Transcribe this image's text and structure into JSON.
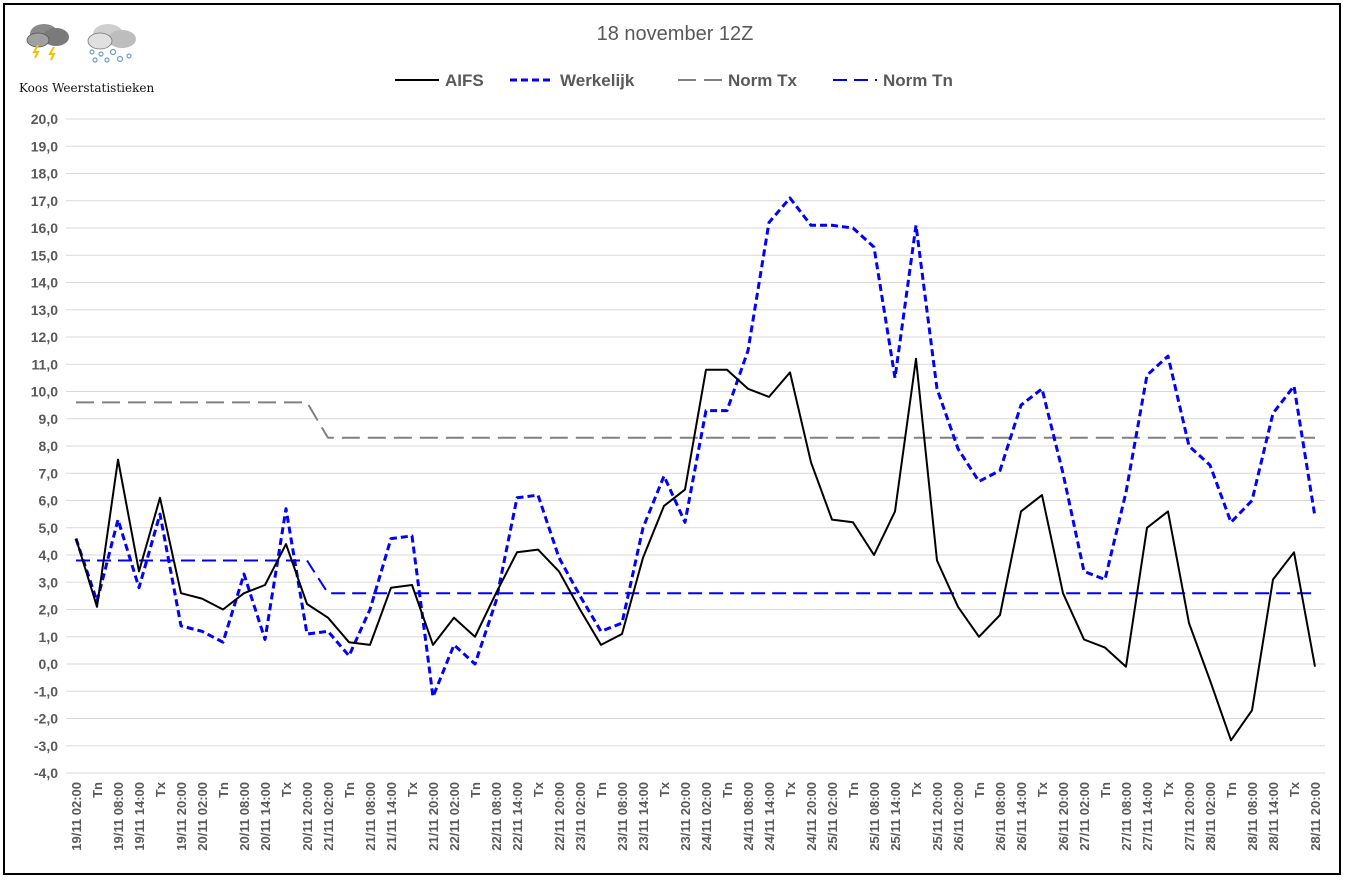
{
  "logo": {
    "text": "Koos Weerstatistieken",
    "icons": [
      "thunderstorm-cloud-icon",
      "snow-cloud-icon"
    ]
  },
  "chart_data": {
    "type": "line",
    "title": "18 november 12Z",
    "xlabel": "",
    "ylabel": "",
    "ylim": [
      -4,
      20
    ],
    "yticks": [
      "20,0",
      "19,0",
      "18,0",
      "17,0",
      "16,0",
      "15,0",
      "14,0",
      "13,0",
      "12,0",
      "11,0",
      "10,0",
      "9,0",
      "8,0",
      "7,0",
      "6,0",
      "5,0",
      "4,0",
      "3,0",
      "2,0",
      "1,0",
      "0,0",
      "-1,0",
      "-2,0",
      "-3,0",
      "-4,0"
    ],
    "grid": true,
    "legend_position": "top",
    "categories": [
      "19/11 02:00",
      "Tn",
      "19/11 08:00",
      "19/11 14:00",
      "Tx",
      "19/11 20:00",
      "20/11 02:00",
      "Tn",
      "20/11 08:00",
      "20/11 14:00",
      "Tx",
      "20/11 20:00",
      "21/11 02:00",
      "Tn",
      "21/11 08:00",
      "21/11 14:00",
      "Tx",
      "21/11 20:00",
      "22/11 02:00",
      "Tn",
      "22/11 08:00",
      "22/11 14:00",
      "Tx",
      "22/11 20:00",
      "23/11 02:00",
      "Tn",
      "23/11 08:00",
      "23/11 14:00",
      "Tx",
      "23/11 20:00",
      "24/11 02:00",
      "Tn",
      "24/11 08:00",
      "24/11 14:00",
      "Tx",
      "24/11 20:00",
      "25/11 02:00",
      "Tn",
      "25/11 08:00",
      "25/11 14:00",
      "Tx",
      "25/11 20:00",
      "26/11 02:00",
      "Tn",
      "26/11 08:00",
      "26/11 14:00",
      "Tx",
      "26/11 20:00",
      "27/11 02:00",
      "Tn",
      "27/11 08:00",
      "27/11 14:00",
      "Tx",
      "27/11 20:00",
      "28/11 02:00",
      "Tn",
      "28/11 08:00",
      "28/11 14:00",
      "Tx",
      "28/11 20:00"
    ],
    "series": [
      {
        "name": "AIFS",
        "color": "#000000",
        "style": "solid",
        "values": [
          4.6,
          2.1,
          7.5,
          3.4,
          6.1,
          2.6,
          2.4,
          2.0,
          2.6,
          2.9,
          4.4,
          2.2,
          1.7,
          0.8,
          0.7,
          2.8,
          2.9,
          0.7,
          1.7,
          1.0,
          2.6,
          4.1,
          4.2,
          3.4,
          2.0,
          0.7,
          1.1,
          3.9,
          5.8,
          6.4,
          10.8,
          10.8,
          10.1,
          9.8,
          10.7,
          7.4,
          5.3,
          5.2,
          4.0,
          5.6,
          11.2,
          3.8,
          2.1,
          1.0,
          1.8,
          5.6,
          6.2,
          2.6,
          0.9,
          0.6,
          -0.1,
          5.0,
          5.6,
          1.5,
          -0.6,
          -2.8,
          -1.7,
          3.1,
          4.1,
          -0.1
        ]
      },
      {
        "name": "Werkelijk",
        "color": "#0000FF",
        "style": "dotted",
        "values": [
          4.6,
          2.3,
          5.3,
          2.8,
          5.5,
          1.4,
          1.2,
          0.8,
          3.3,
          0.9,
          5.7,
          1.1,
          1.2,
          0.3,
          2.0,
          4.6,
          4.7,
          -1.2,
          0.7,
          0.0,
          2.3,
          6.1,
          6.2,
          3.9,
          2.5,
          1.2,
          1.5,
          5.0,
          6.9,
          5.2,
          9.3,
          9.3,
          11.5,
          16.2,
          17.1,
          16.1,
          16.1,
          16.0,
          15.3,
          10.5,
          16.1,
          10.1,
          7.9,
          6.7,
          7.1,
          9.5,
          10.1,
          7.0,
          3.4,
          3.1,
          6.3,
          10.6,
          11.3,
          8.0,
          7.3,
          5.2,
          6.0,
          9.2,
          10.2,
          5.4
        ]
      },
      {
        "name": "Norm Tx",
        "color": "#808080",
        "style": "long-dash",
        "values": [
          9.6,
          9.6,
          9.6,
          9.6,
          9.6,
          9.6,
          9.6,
          9.6,
          9.6,
          9.6,
          9.6,
          9.6,
          8.3,
          8.3,
          8.3,
          8.3,
          8.3,
          8.3,
          8.3,
          8.3,
          8.3,
          8.3,
          8.3,
          8.3,
          8.3,
          8.3,
          8.3,
          8.3,
          8.3,
          8.3,
          8.3,
          8.3,
          8.3,
          8.3,
          8.3,
          8.3,
          8.3,
          8.3,
          8.3,
          8.3,
          8.3,
          8.3,
          8.3,
          8.3,
          8.3,
          8.3,
          8.3,
          8.3,
          8.3,
          8.3,
          8.3,
          8.3,
          8.3,
          8.3,
          8.3,
          8.3,
          8.3,
          8.3,
          8.3,
          8.3
        ]
      },
      {
        "name": "Norm Tn",
        "color": "#0000FF",
        "style": "dash",
        "values": [
          3.8,
          3.8,
          3.8,
          3.8,
          3.8,
          3.8,
          3.8,
          3.8,
          3.8,
          3.8,
          3.8,
          3.8,
          2.6,
          2.6,
          2.6,
          2.6,
          2.6,
          2.6,
          2.6,
          2.6,
          2.6,
          2.6,
          2.6,
          2.6,
          2.6,
          2.6,
          2.6,
          2.6,
          2.6,
          2.6,
          2.6,
          2.6,
          2.6,
          2.6,
          2.6,
          2.6,
          2.6,
          2.6,
          2.6,
          2.6,
          2.6,
          2.6,
          2.6,
          2.6,
          2.6,
          2.6,
          2.6,
          2.6,
          2.6,
          2.6,
          2.6,
          2.6,
          2.6,
          2.6,
          2.6,
          2.6,
          2.6,
          2.6,
          2.6,
          2.6
        ]
      }
    ]
  }
}
